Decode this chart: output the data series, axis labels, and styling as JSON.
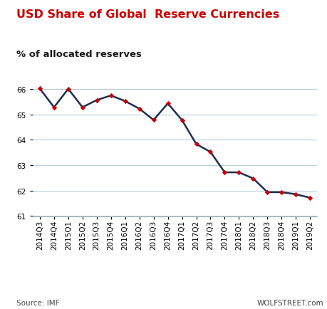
{
  "title": "USD Share of Global  Reserve Currencies",
  "subtitle": "% of allocated reserves",
  "source": "Source: IMF",
  "watermark": "WOLFSTREET.com",
  "labels": [
    "2014Q3",
    "2014Q4",
    "2015Q1",
    "2015Q2",
    "2015Q3",
    "2015Q4",
    "2016Q1",
    "2016Q2",
    "2016Q3",
    "2016Q4",
    "2017Q1",
    "2017Q2",
    "2017Q3",
    "2017Q4",
    "2018Q1",
    "2018Q2",
    "2018Q3",
    "2018Q4",
    "2019Q1",
    "2019Q2"
  ],
  "values": [
    66.01,
    65.28,
    66.0,
    65.28,
    65.56,
    65.74,
    65.52,
    65.22,
    64.78,
    65.43,
    64.77,
    63.83,
    63.52,
    62.72,
    62.72,
    62.48,
    61.94,
    61.94,
    61.86,
    61.72
  ],
  "line_color": "#1f2d50",
  "marker_color": "#cc0000",
  "title_color": "#cc0000",
  "subtitle_color": "#1a1a1a",
  "grid_color": "#b8cfe0",
  "background_color": "#ffffff",
  "ylim": [
    61.0,
    66.6
  ],
  "yticks": [
    61,
    62,
    63,
    64,
    65,
    66
  ],
  "title_fontsize": 11.5,
  "subtitle_fontsize": 9.5,
  "axis_fontsize": 7.5,
  "source_fontsize": 7.5
}
